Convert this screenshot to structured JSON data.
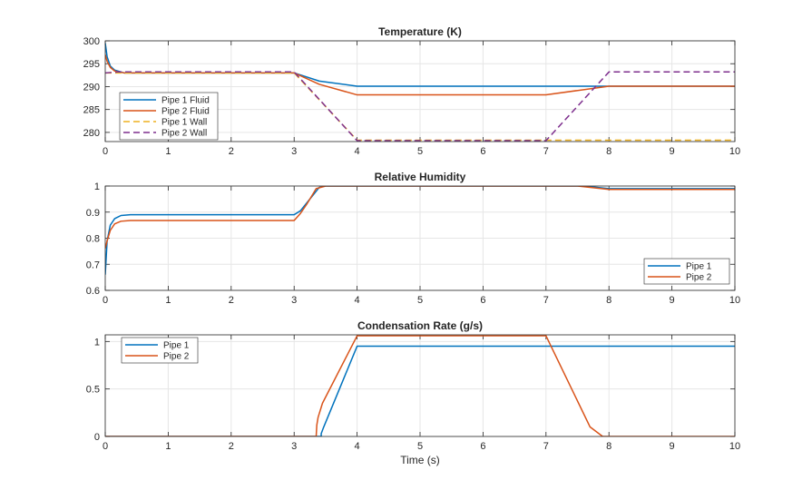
{
  "chart_data": [
    {
      "type": "line",
      "title": "Temperature (K)",
      "xlabel": "",
      "ylabel": "",
      "xlim": [
        0,
        10
      ],
      "ylim": [
        278,
        300
      ],
      "xticks": [
        "0",
        "1",
        "2",
        "3",
        "4",
        "5",
        "6",
        "7",
        "8",
        "9",
        "10"
      ],
      "yticks": [
        "280",
        "285",
        "290",
        "295",
        "300"
      ],
      "grid": true,
      "legend_position": "bottom-left",
      "series": [
        {
          "name": "Pipe 1 Fluid",
          "color": "#0072BD",
          "dash": "solid",
          "x": [
            0,
            0.03,
            0.08,
            0.15,
            0.3,
            3.0,
            3.4,
            4.0,
            8.0,
            10
          ],
          "y": [
            299.5,
            296.5,
            294.5,
            293.6,
            293.0,
            293.0,
            291.2,
            290.1,
            290.1,
            290.1
          ]
        },
        {
          "name": "Pipe 2 Fluid",
          "color": "#D95319",
          "dash": "solid",
          "x": [
            0,
            0.03,
            0.08,
            0.15,
            0.3,
            3.0,
            3.4,
            4.0,
            7.0,
            8.0,
            10
          ],
          "y": [
            297.0,
            295.5,
            294.2,
            293.4,
            293.0,
            293.0,
            290.5,
            288.2,
            288.2,
            290.1,
            290.1
          ]
        },
        {
          "name": "Pipe 1 Wall",
          "color": "#EDB120",
          "dash": "dashed",
          "x": [
            0,
            0.2,
            3.0,
            4.0,
            7.0,
            10
          ],
          "y": [
            293.0,
            293.0,
            293.0,
            278.3,
            278.3,
            278.3
          ]
        },
        {
          "name": "Pipe 2 Wall",
          "color": "#7E2F8E",
          "dash": "dashed",
          "x": [
            0,
            0.2,
            3.0,
            4.0,
            7.0,
            8.0,
            10
          ],
          "y": [
            293.0,
            293.2,
            293.2,
            278.2,
            278.2,
            293.2,
            293.2
          ]
        }
      ]
    },
    {
      "type": "line",
      "title": "Relative Humidity",
      "xlabel": "",
      "ylabel": "",
      "xlim": [
        0,
        10
      ],
      "ylim": [
        0.6,
        1
      ],
      "xticks": [
        "0",
        "1",
        "2",
        "3",
        "4",
        "5",
        "6",
        "7",
        "8",
        "9",
        "10"
      ],
      "yticks": [
        "0.6",
        "0.7",
        "0.8",
        "0.9",
        "1"
      ],
      "grid": true,
      "legend_position": "bottom-right",
      "series": [
        {
          "name": "Pipe 1",
          "color": "#0072BD",
          "dash": "solid",
          "x": [
            0,
            0.03,
            0.08,
            0.15,
            0.25,
            0.4,
            3.0,
            3.1,
            3.25,
            3.4,
            3.5,
            7.6,
            8.0,
            10
          ],
          "y": [
            0.66,
            0.79,
            0.85,
            0.875,
            0.887,
            0.89,
            0.89,
            0.905,
            0.95,
            0.995,
            1.0,
            1.0,
            0.99,
            0.99
          ]
        },
        {
          "name": "Pipe 2",
          "color": "#D95319",
          "dash": "solid",
          "x": [
            0,
            0.03,
            0.08,
            0.15,
            0.25,
            0.4,
            3.0,
            3.1,
            3.2,
            3.35,
            3.5,
            7.5,
            8.0,
            10
          ],
          "y": [
            0.76,
            0.79,
            0.83,
            0.855,
            0.865,
            0.868,
            0.868,
            0.895,
            0.93,
            0.99,
            1.0,
            1.0,
            0.987,
            0.987
          ]
        }
      ]
    },
    {
      "type": "line",
      "title": "Condensation Rate (g/s)",
      "xlabel": "Time (s)",
      "ylabel": "",
      "xlim": [
        0,
        10
      ],
      "ylim": [
        0,
        1.07
      ],
      "xticks": [
        "0",
        "1",
        "2",
        "3",
        "4",
        "5",
        "6",
        "7",
        "8",
        "9",
        "10"
      ],
      "yticks": [
        "0",
        "0.5",
        "1"
      ],
      "grid": true,
      "legend_position": "top-left",
      "series": [
        {
          "name": "Pipe 1",
          "color": "#0072BD",
          "dash": "solid",
          "x": [
            0,
            3.43,
            3.43,
            3.47,
            4.0,
            10
          ],
          "y": [
            0,
            0,
            0.03,
            0.1,
            0.95,
            0.95
          ]
        },
        {
          "name": "Pipe 2",
          "color": "#D95319",
          "dash": "solid",
          "x": [
            0,
            3.35,
            3.36,
            3.38,
            3.45,
            4.0,
            7.0,
            7.7,
            7.9,
            10
          ],
          "y": [
            0,
            0,
            0.12,
            0.2,
            0.35,
            1.06,
            1.06,
            0.1,
            0,
            0
          ]
        }
      ]
    }
  ]
}
